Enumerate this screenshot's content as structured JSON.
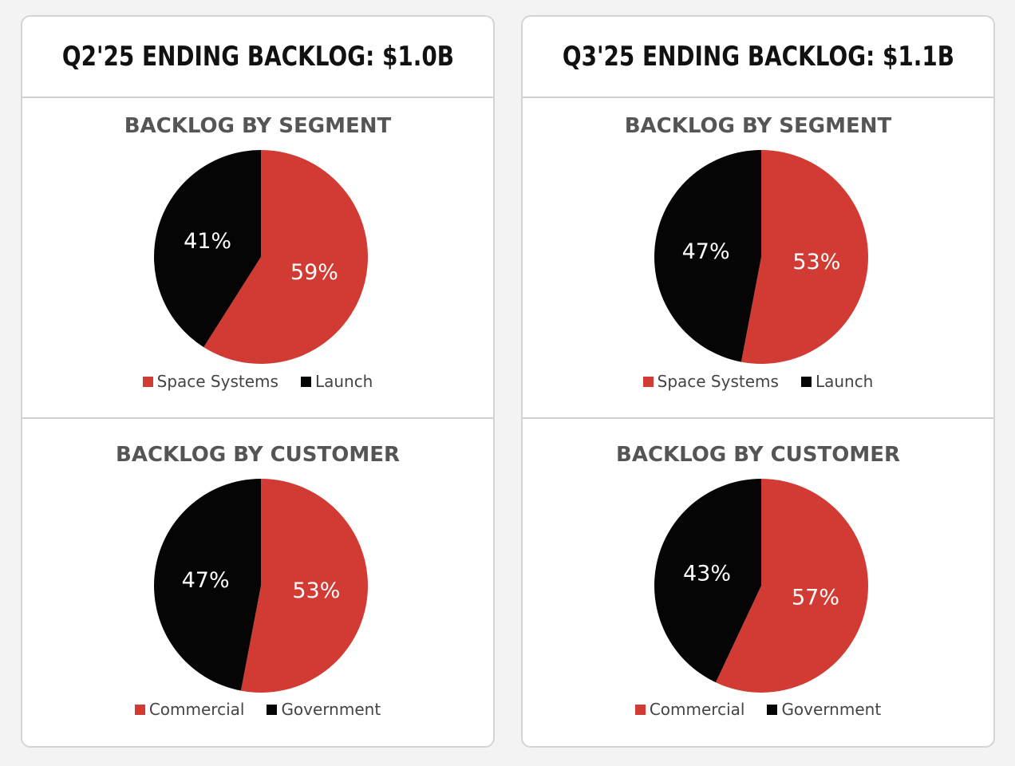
{
  "colors": {
    "red": "#d13b33",
    "black": "#050505"
  },
  "chart_data": [
    {
      "type": "pie",
      "title": "BACKLOG BY SEGMENT",
      "header": "Q2'25 ENDING BACKLOG: $1.0B",
      "slices": [
        {
          "label": "Space Systems",
          "value": 59,
          "display": "59%",
          "color": "#d13b33"
        },
        {
          "label": "Launch",
          "value": 41,
          "display": "41%",
          "color": "#050505"
        }
      ]
    },
    {
      "type": "pie",
      "title": "BACKLOG BY CUSTOMER",
      "header": "Q2'25 ENDING BACKLOG: $1.0B",
      "slices": [
        {
          "label": "Commercial",
          "value": 53,
          "display": "53%",
          "color": "#d13b33"
        },
        {
          "label": "Government",
          "value": 47,
          "display": "47%",
          "color": "#050505"
        }
      ]
    },
    {
      "type": "pie",
      "title": "BACKLOG BY SEGMENT",
      "header": "Q3'25 ENDING BACKLOG: $1.1B",
      "slices": [
        {
          "label": "Space Systems",
          "value": 53,
          "display": "53%",
          "color": "#d13b33"
        },
        {
          "label": "Launch",
          "value": 47,
          "display": "47%",
          "color": "#050505"
        }
      ]
    },
    {
      "type": "pie",
      "title": "BACKLOG BY CUSTOMER",
      "header": "Q3'25 ENDING BACKLOG: $1.1B",
      "slices": [
        {
          "label": "Commercial",
          "value": 57,
          "display": "57%",
          "color": "#d13b33"
        },
        {
          "label": "Government",
          "value": 43,
          "display": "43%",
          "color": "#050505"
        }
      ]
    }
  ],
  "cards": [
    {
      "title": "Q2'25 ENDING BACKLOG: $1.0B",
      "segment": {
        "title": "BACKLOG BY SEGMENT",
        "legend": [
          "Space Systems",
          "Launch"
        ]
      },
      "customer": {
        "title": "BACKLOG BY CUSTOMER",
        "legend": [
          "Commercial",
          "Government"
        ]
      }
    },
    {
      "title": "Q3'25 ENDING BACKLOG: $1.1B",
      "segment": {
        "title": "BACKLOG BY SEGMENT",
        "legend": [
          "Space Systems",
          "Launch"
        ]
      },
      "customer": {
        "title": "BACKLOG BY CUSTOMER",
        "legend": [
          "Commercial",
          "Government"
        ]
      }
    }
  ]
}
